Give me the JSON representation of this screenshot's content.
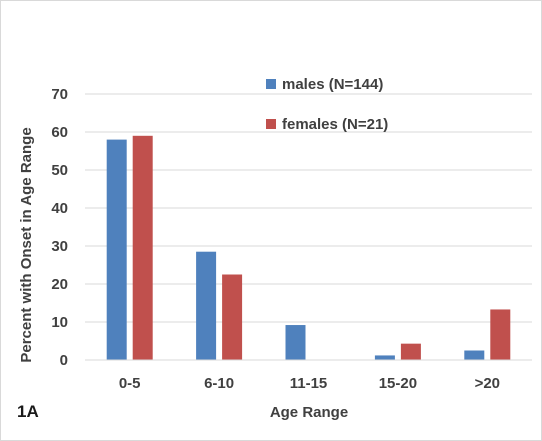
{
  "chart_data": {
    "type": "bar",
    "categories": [
      "0-5",
      "6-10",
      "11-15",
      "15-20",
      ">20"
    ],
    "series": [
      {
        "name": "males (N=144)",
        "color": "#4f81bd",
        "values": [
          58,
          28.5,
          9.2,
          1.2,
          2.5
        ]
      },
      {
        "name": "females (N=21)",
        "color": "#c0504d",
        "values": [
          59,
          22.5,
          0,
          4.3,
          13.3
        ]
      }
    ],
    "xlabel": "Age Range",
    "ylabel": "Percent with Onset in Age Range",
    "ylim": [
      0,
      70
    ],
    "yticks": [
      0,
      10,
      20,
      30,
      40,
      50,
      60,
      70
    ],
    "grid": true,
    "legend_position": "top-right"
  },
  "panel_label": "1A"
}
